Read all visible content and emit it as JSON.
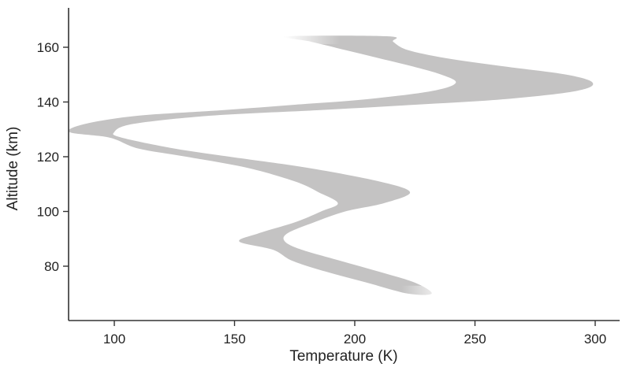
{
  "chart_data": {
    "type": "area",
    "title": "",
    "xlabel": "Temperature (K)",
    "ylabel": "Altitude (km)",
    "xlim": [
      80,
      310
    ],
    "ylim": [
      62,
      175
    ],
    "xticks": [
      {
        "value": 100,
        "label": "100"
      },
      {
        "value": 150,
        "label": "150"
      },
      {
        "value": 200,
        "label": "200"
      },
      {
        "value": 250,
        "label": "250"
      },
      {
        "value": 300,
        "label": "300"
      }
    ],
    "yticks": [
      {
        "value": 80,
        "label": "80"
      },
      {
        "value": 100,
        "label": "100"
      },
      {
        "value": 120,
        "label": "120"
      },
      {
        "value": 140,
        "label": "140"
      },
      {
        "value": 160,
        "label": "160"
      }
    ],
    "grid": false,
    "legend": "none",
    "band_color": "#c4c3c3",
    "series": [
      {
        "band": [
          {
            "altitude": 70,
            "t_min": 222,
            "t_max": 232
          },
          {
            "altitude": 74,
            "t_min": 205,
            "t_max": 225
          },
          {
            "altitude": 78,
            "t_min": 188,
            "t_max": 210
          },
          {
            "altitude": 82,
            "t_min": 174,
            "t_max": 194
          },
          {
            "altitude": 86,
            "t_min": 166,
            "t_max": 178
          },
          {
            "altitude": 89,
            "t_min": 152,
            "t_max": 171
          },
          {
            "altitude": 92,
            "t_min": 160,
            "t_max": 172
          },
          {
            "altitude": 96,
            "t_min": 175,
            "t_max": 183
          },
          {
            "altitude": 100,
            "t_min": 186,
            "t_max": 196
          },
          {
            "altitude": 103,
            "t_min": 193,
            "t_max": 212
          },
          {
            "altitude": 107,
            "t_min": 185,
            "t_max": 223
          },
          {
            "altitude": 111,
            "t_min": 175,
            "t_max": 210
          },
          {
            "altitude": 116,
            "t_min": 155,
            "t_max": 180
          },
          {
            "altitude": 120,
            "t_min": 130,
            "t_max": 148
          },
          {
            "altitude": 123,
            "t_min": 110,
            "t_max": 125
          },
          {
            "altitude": 127,
            "t_min": 98,
            "t_max": 103
          },
          {
            "altitude": 129,
            "t_min": 80,
            "t_max": 100
          },
          {
            "altitude": 132,
            "t_min": 88,
            "t_max": 108
          },
          {
            "altitude": 135,
            "t_min": 110,
            "t_max": 140
          },
          {
            "altitude": 137,
            "t_min": 145,
            "t_max": 185
          },
          {
            "altitude": 139,
            "t_min": 175,
            "t_max": 225
          },
          {
            "altitude": 141,
            "t_min": 205,
            "t_max": 262
          },
          {
            "altitude": 144,
            "t_min": 232,
            "t_max": 292
          },
          {
            "altitude": 147,
            "t_min": 242,
            "t_max": 299
          },
          {
            "altitude": 150,
            "t_min": 236,
            "t_max": 288
          },
          {
            "altitude": 153,
            "t_min": 224,
            "t_max": 262
          },
          {
            "altitude": 156,
            "t_min": 210,
            "t_max": 238
          },
          {
            "altitude": 159,
            "t_min": 196,
            "t_max": 222
          },
          {
            "altitude": 162,
            "t_min": 182,
            "t_max": 216
          },
          {
            "altitude": 164,
            "t_min": 172,
            "t_max": 214
          }
        ]
      }
    ]
  }
}
